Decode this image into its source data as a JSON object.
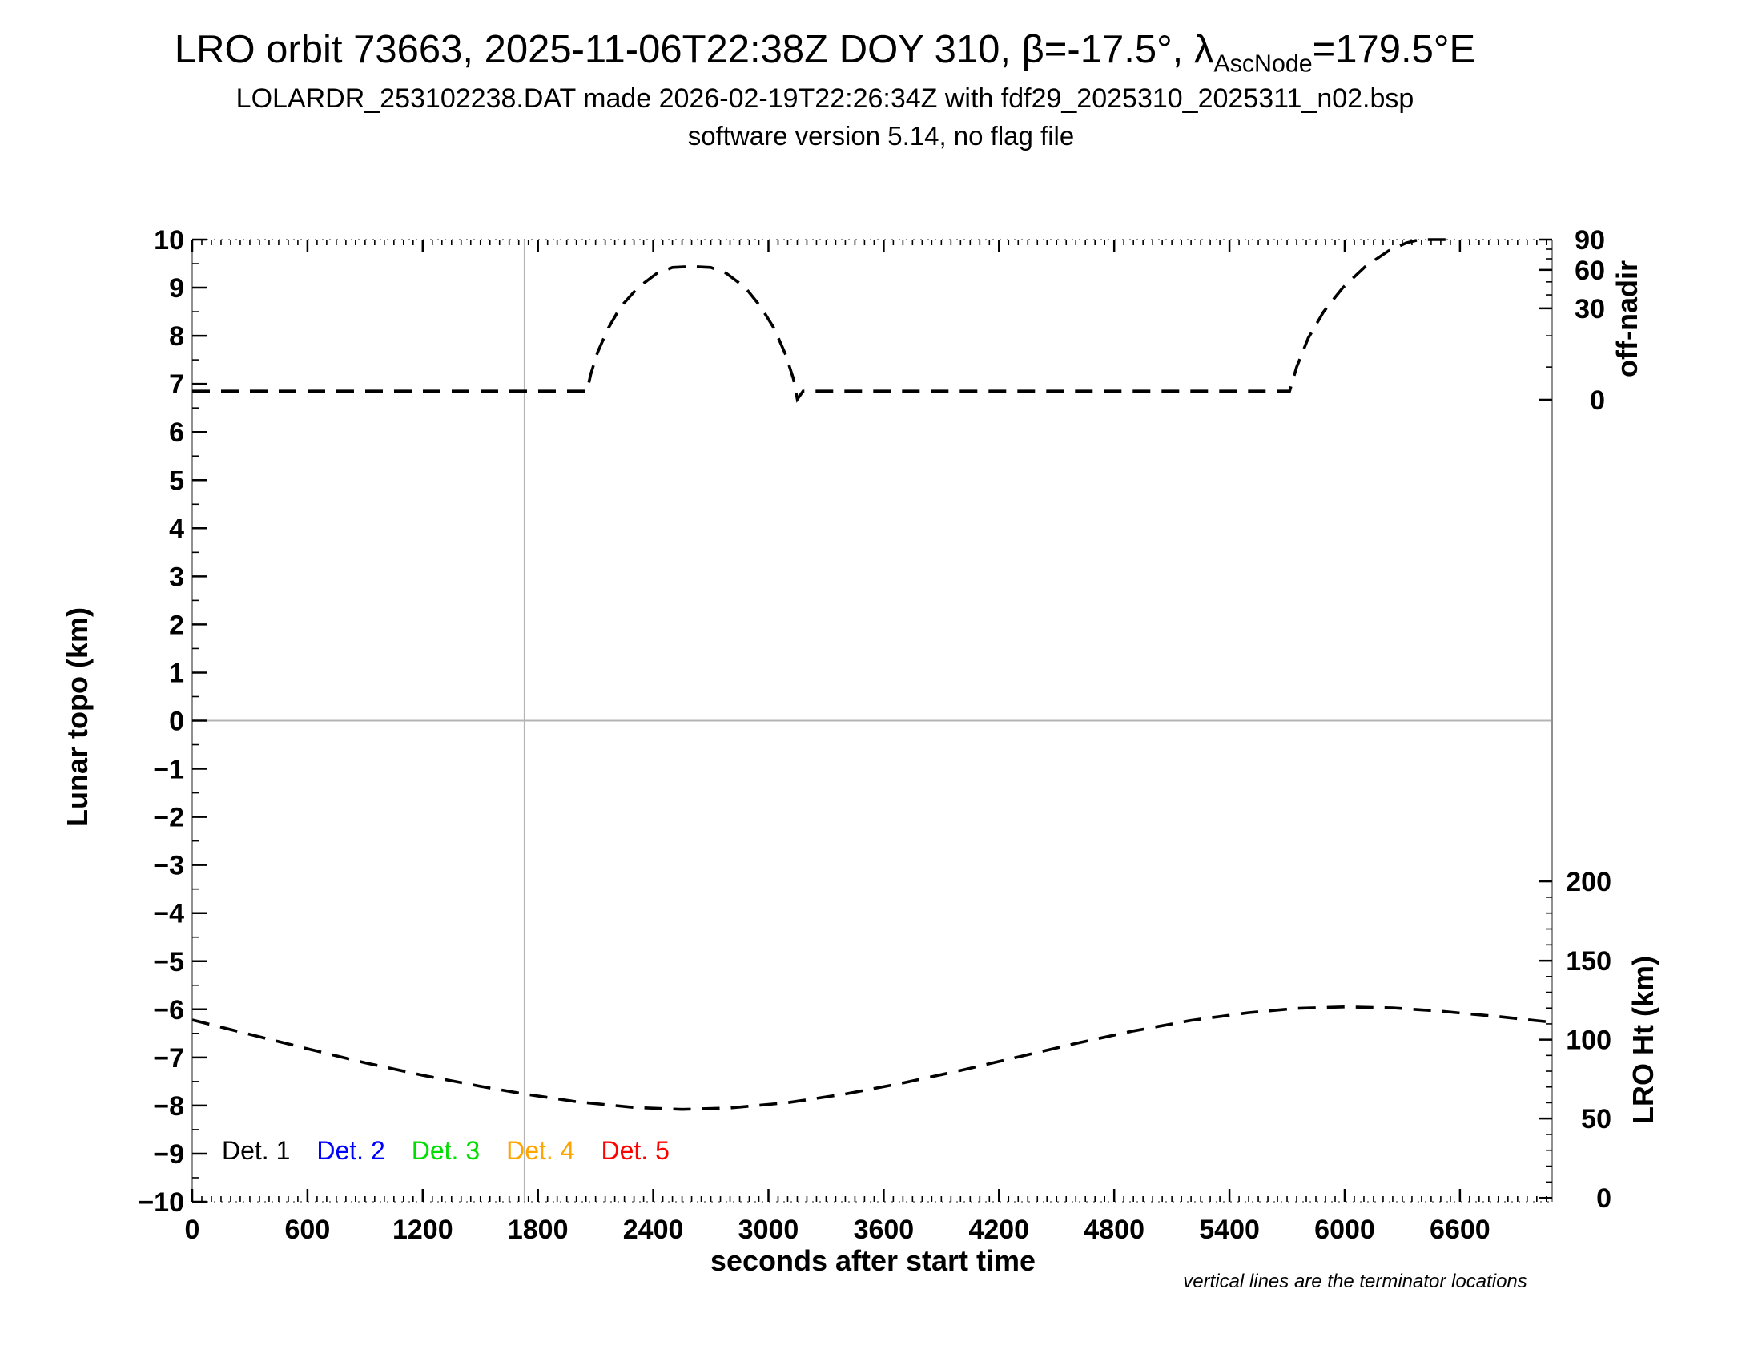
{
  "header": {
    "title_prefix": "LRO orbit 73663, 2025-11-06T22:38Z DOY 310, β=-17.5°, λ",
    "title_lambda_subscript": "AscNode",
    "title_suffix": "=179.5°E",
    "subtitle": "LOLARDR_253102238.DAT made 2026-02-19T22:26:34Z with fdf29_2025310_2025311_n02.bsp",
    "subtitle2": "software version 5.14, no flag file"
  },
  "legend": {
    "items": [
      {
        "label": "Det. 1",
        "color": "#000000"
      },
      {
        "label": "Det. 2",
        "color": "#0000ff"
      },
      {
        "label": "Det. 3",
        "color": "#00dd00"
      },
      {
        "label": "Det. 4",
        "color": "#ffa500"
      },
      {
        "label": "Det. 5",
        "color": "#ff0000"
      }
    ]
  },
  "annotations": {
    "terminator_note": "vertical lines are the terminator locations"
  },
  "chart_data": {
    "type": "line",
    "title": "LRO orbit 73663, 2025-11-06T22:38Z DOY 310, β=-17.5°, λAscNode=179.5°E",
    "xlabel": "seconds after start time",
    "x_range": [
      0,
      7080
    ],
    "x_major_tick_step": 600,
    "x_minor_tick_step": 50,
    "x_tick_labels": [
      0,
      600,
      1200,
      1800,
      2400,
      3000,
      3600,
      4200,
      4800,
      5400,
      6000,
      6600
    ],
    "left_axis": {
      "label": "Lunar topo (km)",
      "range": [
        -10,
        10
      ],
      "major_tick_step": 1,
      "minor_tick_step": 0.5
    },
    "right_axis_top": {
      "label": "off-nadir",
      "tick_values": [
        90,
        60,
        30,
        0
      ],
      "tick_pos_left_units": [
        10.0,
        9.37,
        8.57,
        6.67
      ],
      "minor_tick_pos_left_units": [
        9.8,
        9.6,
        9.12,
        8.85,
        8.0,
        7.35
      ]
    },
    "right_axis_bottom": {
      "label": "LRO Ht (km)",
      "tick_values": [
        200,
        150,
        100,
        50,
        0
      ],
      "tick_pos_left_units": [
        -3.34,
        -4.99,
        -6.63,
        -8.27,
        -9.92
      ],
      "minor_ticks_per_interval": 4
    },
    "reference_lines": {
      "terminator_seconds": 1730,
      "horizontal_left_units": 0
    },
    "grid": false,
    "legend_position": "bottom-left-inside",
    "frame_color": "#909090",
    "series": [
      {
        "name": "off-nadir angle",
        "color": "#000000",
        "line_style": "dashed",
        "y_axis": "right_top",
        "description": "nadir pointing (~0 deg) with a slew to ~62 deg between ~2060 s and ~3160 s, then a ramp reaching 90 deg after ~5710 s",
        "points_t_seconds_v_left_units": [
          [
            0,
            6.85
          ],
          [
            300,
            6.85
          ],
          [
            600,
            6.85
          ],
          [
            900,
            6.85
          ],
          [
            1200,
            6.85
          ],
          [
            1500,
            6.85
          ],
          [
            1800,
            6.85
          ],
          [
            2000,
            6.85
          ],
          [
            2055,
            6.85
          ],
          [
            2075,
            7.2
          ],
          [
            2110,
            7.65
          ],
          [
            2165,
            8.15
          ],
          [
            2230,
            8.6
          ],
          [
            2320,
            9.0
          ],
          [
            2420,
            9.3
          ],
          [
            2500,
            9.42
          ],
          [
            2600,
            9.44
          ],
          [
            2700,
            9.42
          ],
          [
            2780,
            9.3
          ],
          [
            2880,
            9.0
          ],
          [
            2960,
            8.6
          ],
          [
            3030,
            8.15
          ],
          [
            3090,
            7.6
          ],
          [
            3130,
            7.1
          ],
          [
            3150,
            6.68
          ],
          [
            3180,
            6.85
          ],
          [
            3500,
            6.85
          ],
          [
            3900,
            6.85
          ],
          [
            4300,
            6.85
          ],
          [
            4700,
            6.85
          ],
          [
            5100,
            6.85
          ],
          [
            5400,
            6.85
          ],
          [
            5713,
            6.85
          ],
          [
            5750,
            7.35
          ],
          [
            5810,
            7.95
          ],
          [
            5890,
            8.5
          ],
          [
            5990,
            9.0
          ],
          [
            6110,
            9.45
          ],
          [
            6230,
            9.77
          ],
          [
            6320,
            9.93
          ],
          [
            6390,
            10.0
          ],
          [
            6450,
            10.0
          ],
          [
            6560,
            10.0
          ]
        ]
      },
      {
        "name": "LRO height",
        "color": "#000000",
        "line_style": "dashed",
        "y_axis": "right_bottom",
        "description": "~114 km at start, minimum ~58 km near 2550 s, maximum ~123 km near 6000 s, ~112 km at end",
        "points_t_seconds_v_left_units": [
          [
            0,
            -6.22
          ],
          [
            300,
            -6.52
          ],
          [
            600,
            -6.82
          ],
          [
            900,
            -7.11
          ],
          [
            1200,
            -7.37
          ],
          [
            1500,
            -7.6
          ],
          [
            1730,
            -7.76
          ],
          [
            2000,
            -7.92
          ],
          [
            2300,
            -8.04
          ],
          [
            2550,
            -8.08
          ],
          [
            2800,
            -8.05
          ],
          [
            3100,
            -7.94
          ],
          [
            3400,
            -7.76
          ],
          [
            3700,
            -7.53
          ],
          [
            4000,
            -7.27
          ],
          [
            4300,
            -6.99
          ],
          [
            4600,
            -6.71
          ],
          [
            4900,
            -6.45
          ],
          [
            5200,
            -6.23
          ],
          [
            5500,
            -6.07
          ],
          [
            5750,
            -5.98
          ],
          [
            6000,
            -5.95
          ],
          [
            6250,
            -5.97
          ],
          [
            6500,
            -6.04
          ],
          [
            6800,
            -6.15
          ],
          [
            7080,
            -6.27
          ]
        ]
      }
    ]
  }
}
